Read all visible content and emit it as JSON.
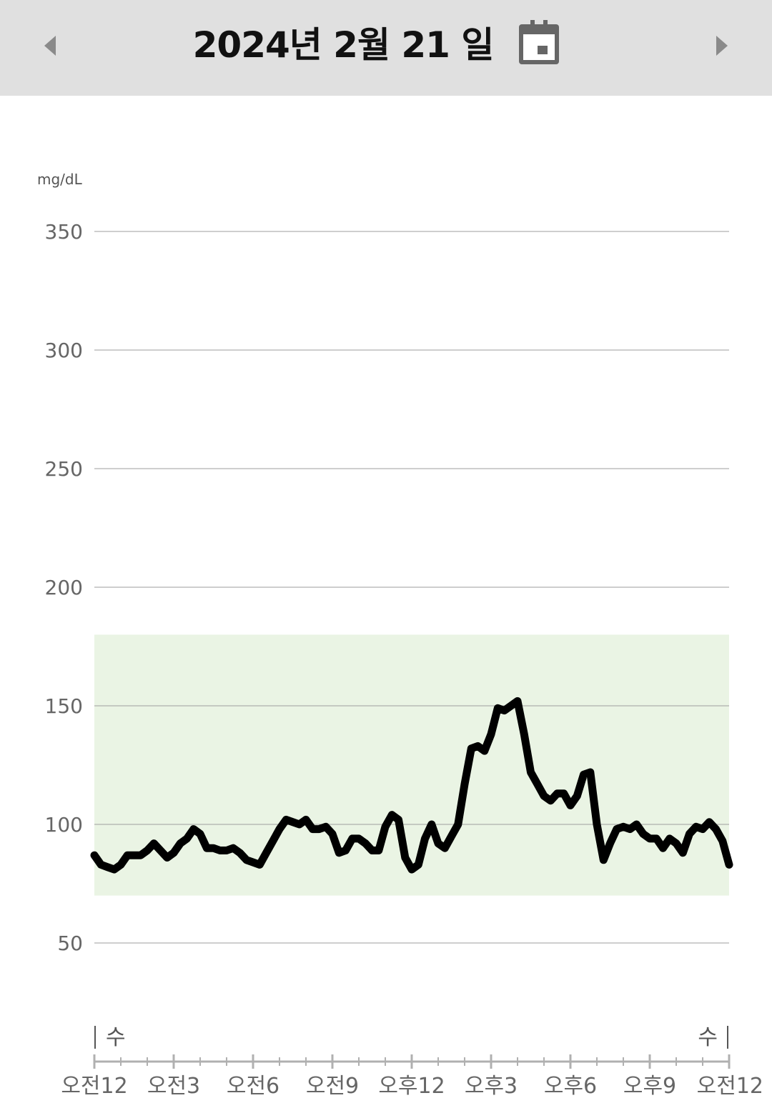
{
  "header": {
    "title": "2024년 2월 21 일",
    "prev_icon": "chevron-left-icon",
    "next_icon": "chevron-right-icon",
    "calendar_icon": "calendar-icon"
  },
  "chart_data": {
    "type": "line",
    "ylabel": "mg/dL",
    "ylim": [
      20,
      380
    ],
    "yticks": [
      50,
      100,
      150,
      200,
      250,
      300,
      350
    ],
    "ytick_labels": [
      "50",
      "100",
      "150",
      "200",
      "250",
      "300",
      "350"
    ],
    "xlim": [
      0,
      24
    ],
    "xticks": [
      0,
      3,
      6,
      9,
      12,
      15,
      18,
      21,
      24
    ],
    "xtick_labels": [
      "오전12",
      "오전3",
      "오전6",
      "오전9",
      "오후12",
      "오후3",
      "오후6",
      "오후9",
      "오전12"
    ],
    "day_labels": [
      "수",
      "수"
    ],
    "target_range": [
      70,
      180
    ],
    "colors": {
      "line": "#000000",
      "target": "#eaf4e4",
      "grid": "#9e9e9e"
    },
    "grid": true,
    "series": [
      {
        "x": [
          0,
          0.25,
          0.5,
          0.75,
          1,
          1.25,
          1.5,
          1.75,
          2,
          2.25,
          2.5,
          2.75,
          3,
          3.25,
          3.5,
          3.75,
          4,
          4.25,
          4.5,
          4.75,
          5,
          5.25,
          5.5,
          5.75,
          6,
          6.25,
          6.5,
          6.75,
          7,
          7.25,
          7.5,
          7.75,
          8,
          8.25,
          8.5,
          8.75,
          9,
          9.25,
          9.5,
          9.75,
          10,
          10.25,
          10.5,
          10.75,
          11,
          11.25,
          11.5,
          11.75,
          12,
          12.25,
          12.5,
          12.75,
          13,
          13.25,
          13.5,
          13.75,
          14,
          14.25,
          14.5,
          14.75,
          15,
          15.25,
          15.5,
          15.75,
          16,
          16.25,
          16.5,
          16.75,
          17,
          17.25,
          17.5,
          17.75,
          18,
          18.25,
          18.5,
          18.75,
          19,
          19.25,
          19.5,
          19.75,
          20,
          20.25,
          20.5,
          20.75,
          21,
          21.25,
          21.5,
          21.75,
          22,
          22.25,
          22.5,
          22.75,
          23,
          23.25,
          23.5,
          23.75,
          24
        ],
        "y": [
          87,
          83,
          82,
          81,
          83,
          87,
          87,
          87,
          89,
          92,
          89,
          86,
          88,
          92,
          94,
          98,
          96,
          90,
          90,
          89,
          89,
          90,
          88,
          85,
          84,
          83,
          88,
          93,
          98,
          102,
          101,
          100,
          102,
          98,
          98,
          99,
          96,
          88,
          89,
          94,
          94,
          92,
          89,
          89,
          99,
          104,
          102,
          86,
          81,
          83,
          94,
          100,
          92,
          90,
          95,
          100,
          117,
          132,
          133,
          131,
          138,
          149,
          148,
          150,
          152,
          138,
          122,
          117,
          112,
          110,
          113,
          113,
          108,
          112,
          121,
          122,
          100,
          85,
          92,
          98,
          99,
          98,
          100,
          96,
          94,
          94,
          90,
          94,
          92,
          88,
          96,
          99,
          98,
          101,
          98,
          93,
          83
        ]
      }
    ]
  }
}
